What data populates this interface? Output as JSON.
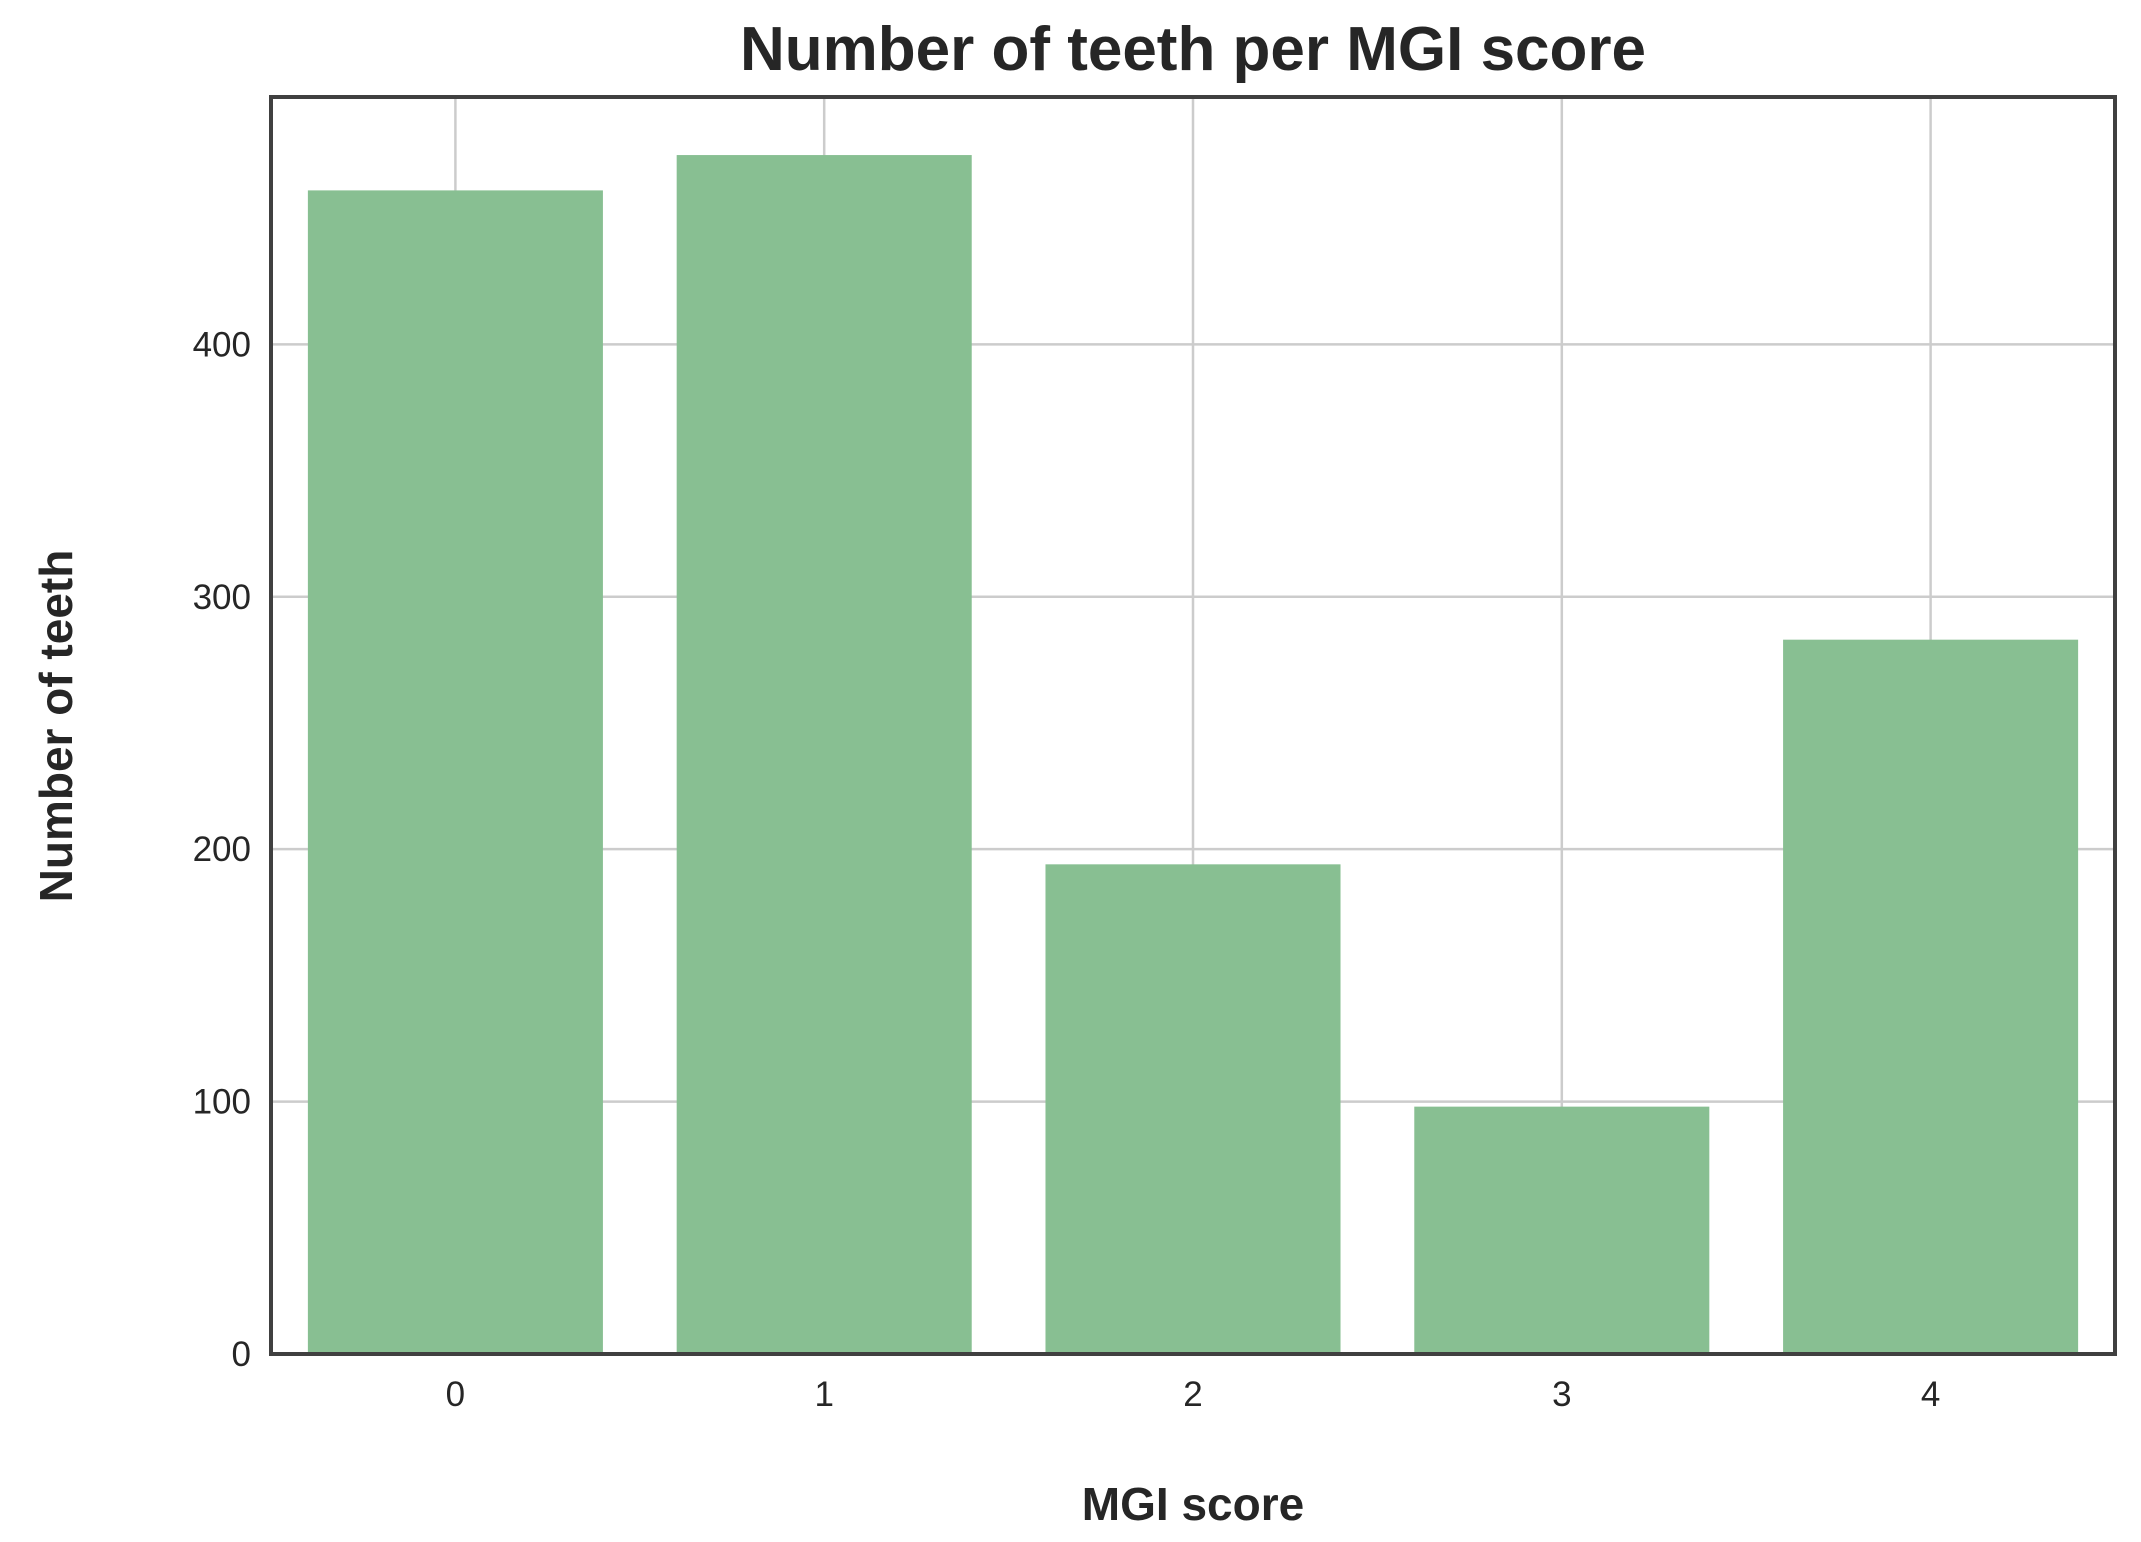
{
  "chart_data": {
    "type": "bar",
    "title": "Number of teeth per MGI score",
    "xlabel": "MGI score",
    "ylabel": "Number of teeth",
    "categories": [
      "0",
      "1",
      "2",
      "3",
      "4"
    ],
    "values": [
      461,
      475,
      194,
      98,
      283
    ],
    "ylim": [
      0,
      498
    ],
    "yticks": [
      0,
      100,
      200,
      300,
      400
    ],
    "grid": true,
    "bar_color": "#88bf92",
    "frame_color": "#404040",
    "grid_color": "#cccccc",
    "text_color": "#262626"
  }
}
